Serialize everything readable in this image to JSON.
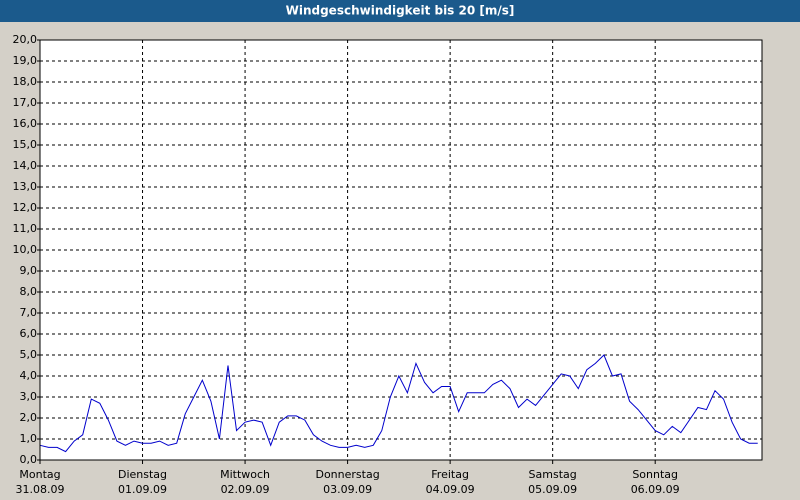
{
  "chart_data": {
    "type": "line",
    "title": "Windgeschwindigkeit bis 20 [m/s]",
    "x": [
      0,
      2,
      4,
      6,
      8,
      10,
      12,
      14,
      16,
      18,
      20,
      22,
      24,
      26,
      28,
      30,
      32,
      34,
      36,
      38,
      40,
      42,
      44,
      46,
      48,
      50,
      52,
      54,
      56,
      58,
      60,
      62,
      64,
      66,
      68,
      70,
      72,
      74,
      76,
      78,
      80,
      82,
      84,
      86,
      88,
      90,
      92,
      94,
      96,
      98,
      100,
      102,
      104,
      106,
      108,
      110,
      112,
      114,
      116,
      118,
      120,
      122,
      124,
      126,
      128,
      130,
      132,
      134,
      136,
      138,
      140,
      142,
      144,
      146,
      148,
      150,
      152,
      154,
      156,
      158,
      160,
      162,
      164,
      166,
      168
    ],
    "values": [
      0.7,
      0.6,
      0.6,
      0.4,
      0.9,
      1.2,
      2.9,
      2.7,
      1.9,
      0.9,
      0.7,
      0.9,
      0.8,
      0.8,
      0.9,
      0.7,
      0.8,
      2.2,
      3.0,
      3.8,
      2.8,
      1.0,
      4.5,
      1.4,
      1.8,
      1.9,
      1.8,
      0.7,
      1.8,
      2.1,
      2.1,
      1.9,
      1.2,
      0.9,
      0.7,
      0.6,
      0.6,
      0.7,
      0.6,
      0.7,
      1.4,
      3.0,
      4.0,
      3.2,
      4.6,
      3.7,
      3.2,
      3.5,
      3.5,
      2.3,
      3.2,
      3.2,
      3.2,
      3.6,
      3.8,
      3.4,
      2.5,
      2.9,
      2.6,
      3.1,
      3.6,
      4.1,
      4.0,
      3.4,
      4.3,
      4.6,
      5.0,
      4.0,
      4.1,
      2.8,
      2.4,
      1.9,
      1.4,
      1.2,
      1.6,
      1.3,
      1.9,
      2.5,
      2.4,
      3.3,
      2.9,
      1.8,
      1.0,
      0.8,
      0.8
    ],
    "color": "#0000cc",
    "xlim": [
      0,
      169
    ],
    "xticks": [
      {
        "value": 0,
        "label": "Montag"
      },
      {
        "value": 24,
        "label": "Dienstag"
      },
      {
        "value": 48,
        "label": "Mittwoch"
      },
      {
        "value": 72,
        "label": "Donnerstag"
      },
      {
        "value": 96,
        "label": "Freitag"
      },
      {
        "value": 120,
        "label": "Samstag"
      },
      {
        "value": 144,
        "label": "Sonntag"
      }
    ],
    "xtick_dates": [
      "31.08.09",
      "01.09.09",
      "02.09.09",
      "03.09.09",
      "04.09.09",
      "05.09.09",
      "06.09.09"
    ],
    "ylim": [
      0,
      20
    ],
    "yticks": [
      {
        "value": 0,
        "label": "0,0"
      },
      {
        "value": 1,
        "label": "1,0"
      },
      {
        "value": 2,
        "label": "2,0"
      },
      {
        "value": 3,
        "label": "3,0"
      },
      {
        "value": 4,
        "label": "4,0"
      },
      {
        "value": 5,
        "label": "5,0"
      },
      {
        "value": 6,
        "label": "6,0"
      },
      {
        "value": 7,
        "label": "7,0"
      },
      {
        "value": 8,
        "label": "8,0"
      },
      {
        "value": 9,
        "label": "9,0"
      },
      {
        "value": 10,
        "label": "10,0"
      },
      {
        "value": 11,
        "label": "11,0"
      },
      {
        "value": 12,
        "label": "12,0"
      },
      {
        "value": 13,
        "label": "13,0"
      },
      {
        "value": 14,
        "label": "14,0"
      },
      {
        "value": 15,
        "label": "15,0"
      },
      {
        "value": 16,
        "label": "16,0"
      },
      {
        "value": 17,
        "label": "17,0"
      },
      {
        "value": 18,
        "label": "18,0"
      },
      {
        "value": 19,
        "label": "19,0"
      },
      {
        "value": 20,
        "label": "20,0"
      }
    ],
    "grid": true
  }
}
